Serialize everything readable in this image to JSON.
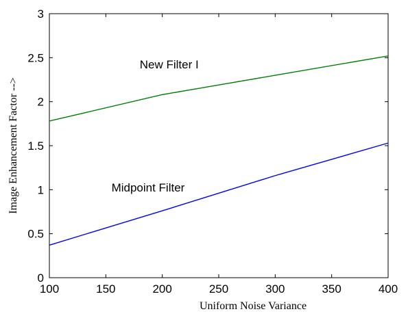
{
  "chart_data": {
    "type": "line",
    "xlabel": "Uniform Noise Variance",
    "ylabel": "Image Enhancement Factor -->",
    "xlim": [
      100,
      400
    ],
    "ylim": [
      0,
      3
    ],
    "xticks": [
      100,
      150,
      200,
      250,
      300,
      350,
      400
    ],
    "yticks": [
      0,
      0.5,
      1,
      1.5,
      2,
      2.5,
      3
    ],
    "ytick_labels": [
      "0",
      "0.5",
      "1",
      "1.5",
      "2",
      "2.5",
      "3"
    ],
    "grid": false,
    "series": [
      {
        "name": "New Filter I",
        "color": "#008000",
        "x": [
          100,
          200,
          300,
          400
        ],
        "y": [
          1.78,
          2.08,
          2.3,
          2.52
        ]
      },
      {
        "name": "Midpoint Filter",
        "color": "#0000ff",
        "x": [
          100,
          200,
          300,
          400
        ],
        "y": [
          0.37,
          0.76,
          1.16,
          1.53
        ]
      }
    ],
    "annotations": [
      {
        "text": "New Filter I",
        "x": 180,
        "y": 2.38
      },
      {
        "text": "Midpoint Filter",
        "x": 155,
        "y": 0.98
      }
    ]
  }
}
